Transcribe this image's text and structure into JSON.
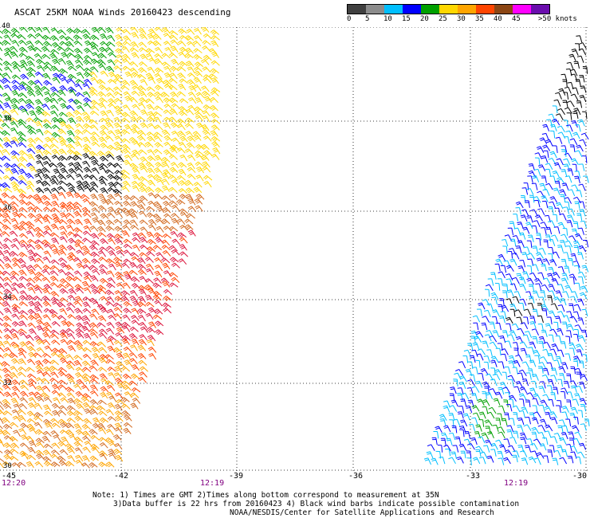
{
  "header": {
    "title": "ASCAT 25KM NOAA Winds 20160423 descending"
  },
  "legend": {
    "ticks": [
      "0",
      "5",
      "10",
      "15",
      "20",
      "25",
      "30",
      "35",
      "40",
      "45",
      ">50 knots"
    ],
    "colors": [
      "#000000",
      "#7f7f7f",
      "#00bfff",
      "#0000ff",
      "#00a000",
      "#ffd700",
      "#ffa500",
      "#ff4500",
      "#8b4513",
      "#ff00ff",
      "#6a0dad"
    ]
  },
  "map": {
    "lat_labels": [
      "40",
      "38",
      "36",
      "34",
      "32",
      "30"
    ],
    "lon_labels": [
      "-45",
      "-42",
      "-39",
      "-36",
      "-33",
      "-30"
    ],
    "times": [
      "12:20",
      "12:19",
      "12:19"
    ]
  },
  "notes": {
    "line1": "Note: 1) Times are GMT 2)Times along bottom correspond to measurement at 35N",
    "line2": "3)Data buffer is 22 hrs from 20160423 4) Black wind barbs indicate possible contamination",
    "line3": "NOAA/NESDIS/Center for Satellite Applications and Research"
  },
  "colors": {
    "grid": "#000000",
    "background": "#ffffff",
    "time_label": "#800080"
  }
}
